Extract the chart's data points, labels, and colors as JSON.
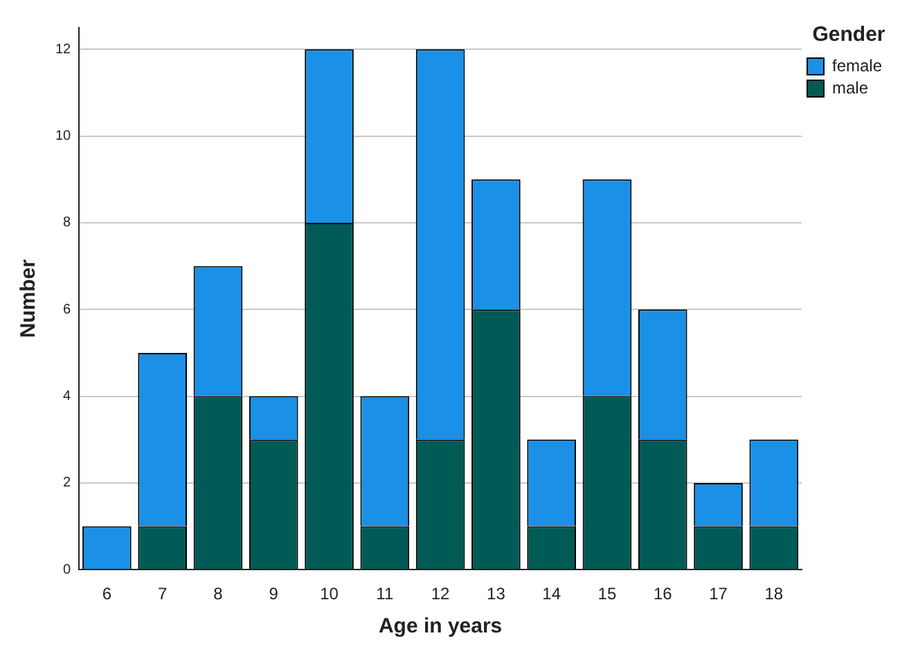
{
  "chart_data": {
    "type": "bar",
    "xlabel": "Age in years",
    "ylabel": "Number",
    "legend_title": "Gender",
    "categories": [
      "6",
      "7",
      "8",
      "9",
      "10",
      "11",
      "12",
      "13",
      "14",
      "15",
      "16",
      "17",
      "18"
    ],
    "series": [
      {
        "name": "male",
        "color": "#005a55",
        "values": [
          0,
          1,
          4,
          3,
          8,
          1,
          3,
          6,
          1,
          4,
          3,
          1,
          1
        ]
      },
      {
        "name": "female",
        "color": "#1a90e6",
        "values": [
          1,
          4,
          3,
          1,
          4,
          3,
          9,
          3,
          2,
          5,
          3,
          1,
          2
        ]
      }
    ],
    "stacked": true,
    "ylim": [
      0,
      12.5
    ],
    "yticks": [
      0,
      2,
      4,
      6,
      8,
      10,
      12
    ],
    "grid": "y",
    "legend": "top right"
  }
}
